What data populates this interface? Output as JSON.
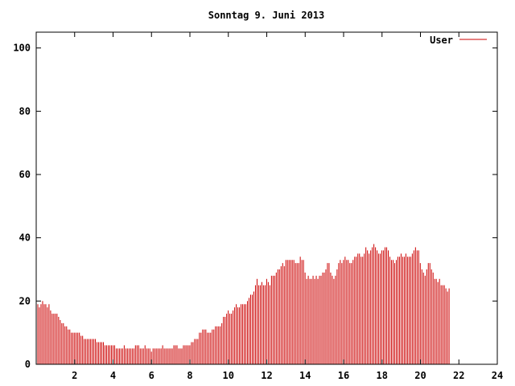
{
  "chart_data": {
    "type": "bar",
    "title": "Sonntag 9. Juni 2013",
    "xlabel": "",
    "ylabel": "",
    "xlim": [
      0,
      24
    ],
    "ylim": [
      0,
      105
    ],
    "xticks": [
      2,
      4,
      6,
      8,
      10,
      12,
      14,
      16,
      18,
      20,
      22,
      24
    ],
    "yticks": [
      0,
      20,
      40,
      60,
      80,
      100
    ],
    "grid": false,
    "legend": {
      "placement": "top-right"
    },
    "series": [
      {
        "name": "User",
        "color": "#cc0000",
        "x_start": 0,
        "x_step": 0.0833,
        "values": [
          18,
          19,
          18,
          19,
          20,
          19,
          19,
          18,
          19,
          17,
          16,
          16,
          16,
          16,
          15,
          14,
          13,
          13,
          12,
          12,
          11,
          11,
          10,
          10,
          10,
          10,
          10,
          10,
          9,
          9,
          8,
          8,
          8,
          8,
          8,
          8,
          8,
          8,
          7,
          7,
          7,
          7,
          7,
          6,
          6,
          6,
          6,
          6,
          6,
          6,
          5,
          5,
          5,
          5,
          5,
          6,
          5,
          5,
          5,
          5,
          5,
          5,
          6,
          6,
          6,
          5,
          5,
          5,
          6,
          5,
          5,
          5,
          4,
          5,
          5,
          5,
          5,
          5,
          5,
          6,
          5,
          5,
          5,
          5,
          5,
          5,
          6,
          6,
          6,
          5,
          5,
          5,
          6,
          6,
          6,
          6,
          6,
          7,
          7,
          8,
          8,
          8,
          10,
          10,
          11,
          11,
          11,
          10,
          10,
          10,
          11,
          11,
          12,
          12,
          12,
          12,
          13,
          15,
          15,
          16,
          17,
          16,
          16,
          17,
          18,
          19,
          18,
          18,
          19,
          19,
          19,
          19,
          20,
          21,
          22,
          22,
          23,
          25,
          27,
          25,
          25,
          26,
          25,
          25,
          27,
          26,
          25,
          28,
          28,
          28,
          29,
          30,
          30,
          31,
          32,
          31,
          33,
          33,
          33,
          33,
          33,
          33,
          32,
          32,
          32,
          34,
          33,
          33,
          29,
          27,
          28,
          27,
          27,
          28,
          27,
          28,
          27,
          28,
          28,
          29,
          29,
          30,
          32,
          32,
          29,
          28,
          27,
          28,
          30,
          32,
          33,
          32,
          33,
          34,
          33,
          33,
          32,
          32,
          33,
          34,
          34,
          35,
          35,
          34,
          34,
          35,
          37,
          36,
          35,
          36,
          37,
          38,
          37,
          36,
          35,
          35,
          36,
          36,
          37,
          37,
          36,
          34,
          33,
          33,
          32,
          33,
          34,
          34,
          35,
          34,
          34,
          35,
          34,
          34,
          34,
          35,
          36,
          37,
          36,
          36,
          32,
          30,
          29,
          28,
          30,
          32,
          32,
          30,
          29,
          27,
          27,
          26,
          27,
          25,
          25,
          25,
          24,
          23,
          24
        ]
      }
    ]
  }
}
